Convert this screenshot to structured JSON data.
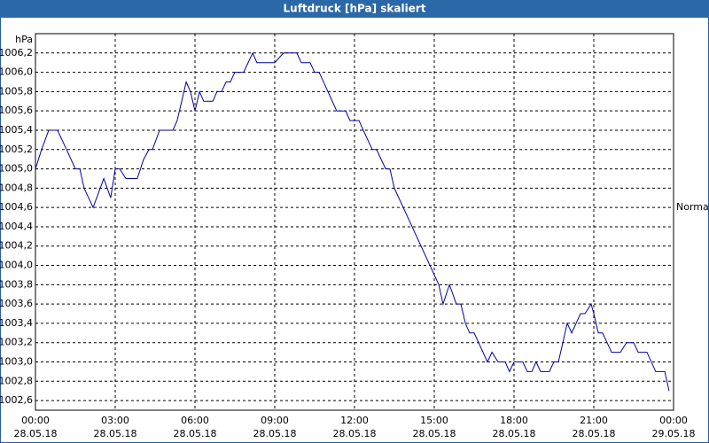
{
  "chart_data": {
    "type": "line",
    "title": "Luftdruck [hPa] skaliert",
    "ylabel": "hPa",
    "annotation": "Normal",
    "annotation_value": 1004.6,
    "color": "#0000a0",
    "grid": true,
    "xlim": [
      0,
      24
    ],
    "ylim": [
      1002.5,
      1006.4
    ],
    "xticks": [
      {
        "value": 0,
        "label": "00:00",
        "date": "28.05.18"
      },
      {
        "value": 3,
        "label": "03:00",
        "date": "28.05.18"
      },
      {
        "value": 6,
        "label": "06:00",
        "date": "28.05.18"
      },
      {
        "value": 9,
        "label": "09:00",
        "date": "28.05.18"
      },
      {
        "value": 12,
        "label": "12:00",
        "date": "28.05.18"
      },
      {
        "value": 15,
        "label": "15:00",
        "date": "28.05.18"
      },
      {
        "value": 18,
        "label": "18:00",
        "date": "28.05.18"
      },
      {
        "value": 21,
        "label": "21:00",
        "date": "28.05.18"
      },
      {
        "value": 24,
        "label": "00:00",
        "date": "29.05.18"
      }
    ],
    "yticks": [
      {
        "value": 1002.6,
        "label": "1002,6"
      },
      {
        "value": 1002.8,
        "label": "1002,8"
      },
      {
        "value": 1003.0,
        "label": "1003,0"
      },
      {
        "value": 1003.2,
        "label": "1003,2"
      },
      {
        "value": 1003.4,
        "label": "1003,4"
      },
      {
        "value": 1003.6,
        "label": "1003,6"
      },
      {
        "value": 1003.8,
        "label": "1003,8"
      },
      {
        "value": 1004.0,
        "label": "1004,0"
      },
      {
        "value": 1004.2,
        "label": "1004,2"
      },
      {
        "value": 1004.4,
        "label": "1004,4"
      },
      {
        "value": 1004.6,
        "label": "1004,6"
      },
      {
        "value": 1004.8,
        "label": "1004,8"
      },
      {
        "value": 1005.0,
        "label": "1005,0"
      },
      {
        "value": 1005.2,
        "label": "1005,2"
      },
      {
        "value": 1005.4,
        "label": "1005,4"
      },
      {
        "value": 1005.6,
        "label": "1005,6"
      },
      {
        "value": 1005.8,
        "label": "1005,8"
      },
      {
        "value": 1006.0,
        "label": "1006,0"
      },
      {
        "value": 1006.2,
        "label": "1006,2"
      }
    ],
    "x": [
      0,
      0.23,
      0.5,
      0.83,
      1.17,
      1.5,
      1.67,
      1.83,
      2.17,
      2.57,
      2.83,
      3,
      3.17,
      3.4,
      3.83,
      4.07,
      4.27,
      4.4,
      4.67,
      5.17,
      5.33,
      5.67,
      5.83,
      6,
      6.17,
      6.33,
      6.67,
      6.83,
      7,
      7.17,
      7.33,
      7.5,
      7.83,
      8.17,
      8.33,
      9,
      9.33,
      9.83,
      10,
      10.33,
      10.5,
      10.67,
      11.33,
      11.67,
      11.83,
      12,
      12.17,
      12.33,
      12.67,
      12.83,
      13.17,
      13.33,
      13.5,
      15.17,
      15.33,
      15.57,
      15.83,
      16,
      16.17,
      16.33,
      16.5,
      17,
      17.17,
      17.4,
      17.67,
      17.83,
      18,
      18.33,
      18.5,
      18.67,
      18.83,
      19,
      19.17,
      19.33,
      19.5,
      19.67,
      20,
      20.17,
      20.5,
      20.67,
      20.9,
      21,
      21.17,
      21.33,
      21.67,
      22,
      22.23,
      22.5,
      22.67,
      23,
      23.33,
      23.67,
      23.83
    ],
    "values": [
      1005.0,
      1005.2,
      1005.4,
      1005.4,
      1005.2,
      1005.0,
      1005.0,
      1004.8,
      1004.6,
      1004.9,
      1004.7,
      1005.0,
      1005.0,
      1004.9,
      1004.9,
      1005.1,
      1005.2,
      1005.2,
      1005.4,
      1005.4,
      1005.5,
      1005.9,
      1005.8,
      1005.6,
      1005.8,
      1005.7,
      1005.7,
      1005.8,
      1005.8,
      1005.9,
      1005.9,
      1006.0,
      1006.0,
      1006.2,
      1006.1,
      1006.1,
      1006.2,
      1006.2,
      1006.1,
      1006.1,
      1006.0,
      1006.0,
      1005.6,
      1005.6,
      1005.5,
      1005.5,
      1005.5,
      1005.4,
      1005.2,
      1005.2,
      1005.0,
      1005.0,
      1004.8,
      1003.8,
      1003.6,
      1003.8,
      1003.6,
      1003.6,
      1003.4,
      1003.3,
      1003.3,
      1003.0,
      1003.1,
      1003.0,
      1003.0,
      1002.9,
      1003.0,
      1003.0,
      1002.9,
      1002.9,
      1003.0,
      1002.9,
      1002.9,
      1002.9,
      1003.0,
      1003.0,
      1003.4,
      1003.3,
      1003.5,
      1003.5,
      1003.6,
      1003.5,
      1003.3,
      1003.3,
      1003.1,
      1003.1,
      1003.2,
      1003.2,
      1003.1,
      1003.1,
      1002.9,
      1002.9,
      1002.7
    ]
  }
}
